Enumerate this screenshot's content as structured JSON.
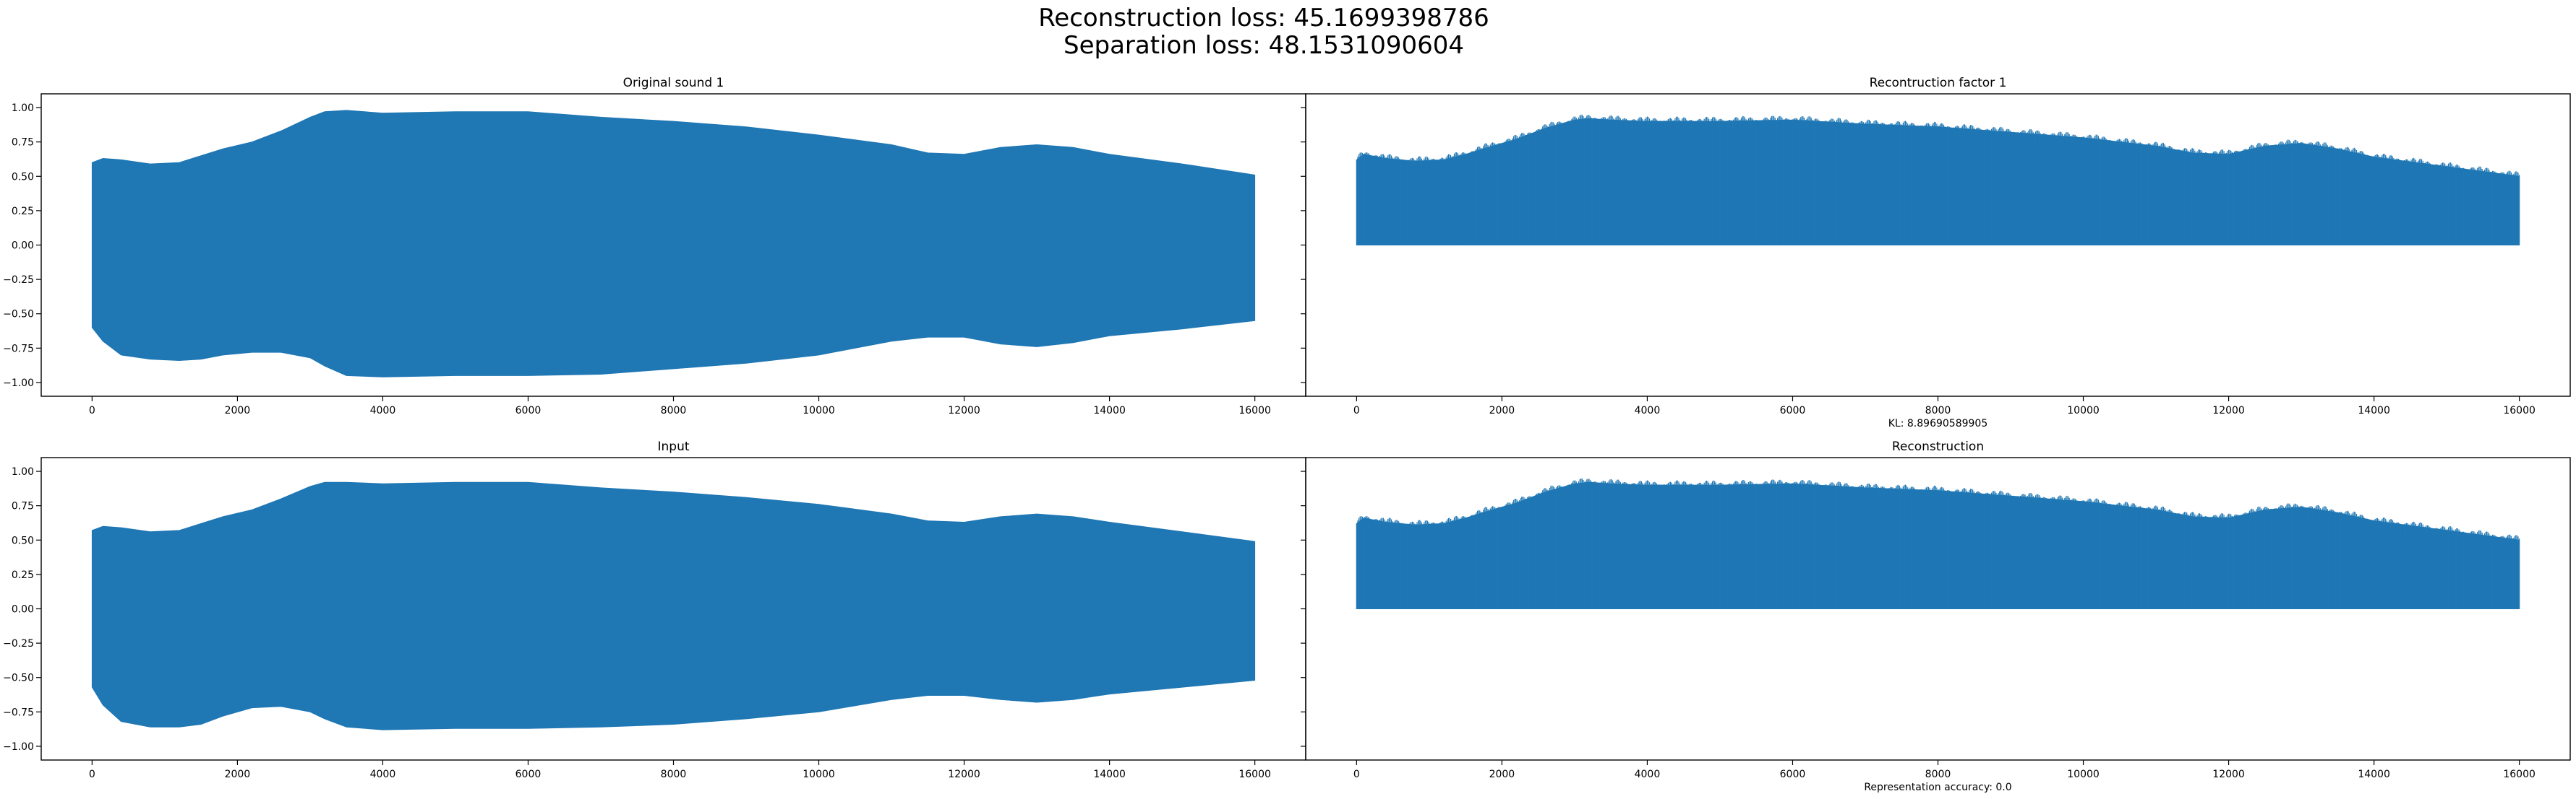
{
  "figure": {
    "suptitle_lines": [
      "Reconstruction loss: 45.1699398786",
      "Separation loss: 48.1531090604"
    ]
  },
  "colors": {
    "series": "#1f77b4",
    "axes": "#000000",
    "text": "#000000"
  },
  "chart_data": [
    {
      "type": "area",
      "panel": "top-left",
      "title": "Original sound 1",
      "xlabel": "",
      "ylabel": "",
      "xlim": [
        -700,
        16700
      ],
      "ylim": [
        -1.1,
        1.1
      ],
      "xticks": [
        0,
        2000,
        4000,
        6000,
        8000,
        10000,
        12000,
        14000,
        16000
      ],
      "xtick_labels": [
        "0",
        "2000",
        "4000",
        "6000",
        "8000",
        "10000",
        "12000",
        "14000",
        "16000"
      ],
      "yticks": [
        1.0,
        0.75,
        0.5,
        0.25,
        0.0,
        -0.25,
        -0.5,
        -0.75,
        -1.0
      ],
      "ytick_labels": [
        "1.00",
        "0.75",
        "0.50",
        "0.25",
        "0.00",
        "−0.25",
        "−0.50",
        "−0.75",
        "−1.00"
      ],
      "grid": false,
      "envelope": {
        "x": [
          0,
          150,
          400,
          800,
          1200,
          1500,
          1800,
          2200,
          2600,
          3000,
          3200,
          3500,
          4000,
          5000,
          6000,
          7000,
          8000,
          9000,
          10000,
          11000,
          11500,
          12000,
          12500,
          13000,
          13500,
          14000,
          15000,
          16000
        ],
        "upper": [
          0.6,
          0.63,
          0.62,
          0.59,
          0.6,
          0.65,
          0.7,
          0.75,
          0.83,
          0.93,
          0.97,
          0.98,
          0.96,
          0.97,
          0.97,
          0.93,
          0.9,
          0.86,
          0.8,
          0.73,
          0.67,
          0.66,
          0.71,
          0.73,
          0.71,
          0.66,
          0.59,
          0.51
        ],
        "lower": [
          -0.6,
          -0.7,
          -0.8,
          -0.83,
          -0.84,
          -0.83,
          -0.8,
          -0.78,
          -0.78,
          -0.82,
          -0.88,
          -0.95,
          -0.96,
          -0.95,
          -0.95,
          -0.94,
          -0.9,
          -0.86,
          -0.8,
          -0.7,
          -0.67,
          -0.67,
          -0.72,
          -0.74,
          -0.71,
          -0.66,
          -0.61,
          -0.55
        ]
      }
    },
    {
      "type": "bar",
      "panel": "top-right",
      "title": "Recontruction factor 1",
      "xlabel": "KL: 8.89690589905",
      "ylabel": "",
      "xlim": [
        -700,
        16700
      ],
      "ylim": [
        -1.1,
        1.1
      ],
      "xticks": [
        0,
        2000,
        4000,
        6000,
        8000,
        10000,
        12000,
        14000,
        16000
      ],
      "xtick_labels": [
        "0",
        "2000",
        "4000",
        "6000",
        "8000",
        "10000",
        "12000",
        "14000",
        "16000"
      ],
      "grid": false,
      "envelope": {
        "x": [
          0,
          100,
          400,
          800,
          1200,
          1500,
          1800,
          2200,
          2600,
          3000,
          3200,
          3500,
          4000,
          5000,
          6000,
          7000,
          8000,
          9000,
          10000,
          11000,
          11500,
          12000,
          12500,
          13000,
          13500,
          14000,
          15000,
          16000
        ],
        "upper": [
          0.62,
          0.66,
          0.63,
          0.61,
          0.62,
          0.66,
          0.71,
          0.77,
          0.85,
          0.91,
          0.92,
          0.91,
          0.9,
          0.9,
          0.91,
          0.88,
          0.86,
          0.82,
          0.78,
          0.72,
          0.67,
          0.66,
          0.72,
          0.74,
          0.7,
          0.64,
          0.57,
          0.5
        ],
        "lower": [
          0,
          0,
          0,
          0,
          0,
          0,
          0,
          0,
          0,
          0,
          0,
          0,
          0,
          0,
          0,
          0,
          0,
          0,
          0,
          0,
          0,
          0,
          0,
          0,
          0,
          0,
          0,
          0
        ]
      }
    },
    {
      "type": "area",
      "panel": "bottom-left",
      "title": "Input",
      "xlabel": "",
      "ylabel": "",
      "xlim": [
        -700,
        16700
      ],
      "ylim": [
        -1.1,
        1.1
      ],
      "xticks": [
        0,
        2000,
        4000,
        6000,
        8000,
        10000,
        12000,
        14000,
        16000
      ],
      "xtick_labels": [
        "0",
        "2000",
        "4000",
        "6000",
        "8000",
        "10000",
        "12000",
        "14000",
        "16000"
      ],
      "yticks": [
        1.0,
        0.75,
        0.5,
        0.25,
        0.0,
        -0.25,
        -0.5,
        -0.75,
        -1.0
      ],
      "ytick_labels": [
        "1.00",
        "0.75",
        "0.50",
        "0.25",
        "0.00",
        "−0.25",
        "−0.50",
        "−0.75",
        "−1.00"
      ],
      "grid": false,
      "envelope": {
        "x": [
          0,
          150,
          400,
          800,
          1200,
          1500,
          1800,
          2200,
          2600,
          3000,
          3200,
          3500,
          4000,
          5000,
          6000,
          7000,
          8000,
          9000,
          10000,
          11000,
          11500,
          12000,
          12500,
          13000,
          13500,
          14000,
          15000,
          16000
        ],
        "upper": [
          0.57,
          0.6,
          0.59,
          0.56,
          0.57,
          0.62,
          0.67,
          0.72,
          0.8,
          0.89,
          0.92,
          0.92,
          0.91,
          0.92,
          0.92,
          0.88,
          0.85,
          0.81,
          0.76,
          0.69,
          0.64,
          0.63,
          0.67,
          0.69,
          0.67,
          0.63,
          0.56,
          0.49
        ],
        "lower": [
          -0.57,
          -0.7,
          -0.82,
          -0.86,
          -0.86,
          -0.84,
          -0.78,
          -0.72,
          -0.71,
          -0.75,
          -0.8,
          -0.86,
          -0.88,
          -0.87,
          -0.87,
          -0.86,
          -0.84,
          -0.8,
          -0.75,
          -0.66,
          -0.63,
          -0.63,
          -0.66,
          -0.68,
          -0.66,
          -0.62,
          -0.57,
          -0.52
        ]
      }
    },
    {
      "type": "bar",
      "panel": "bottom-right",
      "title": "Reconstruction",
      "xlabel": "Representation accuracy: 0.0",
      "ylabel": "",
      "xlim": [
        -700,
        16700
      ],
      "ylim": [
        -1.1,
        1.1
      ],
      "xticks": [
        0,
        2000,
        4000,
        6000,
        8000,
        10000,
        12000,
        14000,
        16000
      ],
      "xtick_labels": [
        "0",
        "2000",
        "4000",
        "6000",
        "8000",
        "10000",
        "12000",
        "14000",
        "16000"
      ],
      "grid": false,
      "envelope": {
        "x": [
          0,
          100,
          400,
          800,
          1200,
          1500,
          1800,
          2200,
          2600,
          3000,
          3200,
          3500,
          4000,
          5000,
          6000,
          7000,
          8000,
          9000,
          10000,
          11000,
          11500,
          12000,
          12500,
          13000,
          13500,
          14000,
          15000,
          16000
        ],
        "upper": [
          0.62,
          0.66,
          0.63,
          0.61,
          0.62,
          0.66,
          0.71,
          0.77,
          0.85,
          0.91,
          0.92,
          0.91,
          0.9,
          0.9,
          0.91,
          0.88,
          0.86,
          0.82,
          0.78,
          0.72,
          0.67,
          0.66,
          0.72,
          0.74,
          0.7,
          0.64,
          0.57,
          0.5
        ],
        "lower": [
          0,
          0,
          0,
          0,
          0,
          0,
          0,
          0,
          0,
          0,
          0,
          0,
          0,
          0,
          0,
          0,
          0,
          0,
          0,
          0,
          0,
          0,
          0,
          0,
          0,
          0,
          0,
          0
        ]
      }
    }
  ]
}
